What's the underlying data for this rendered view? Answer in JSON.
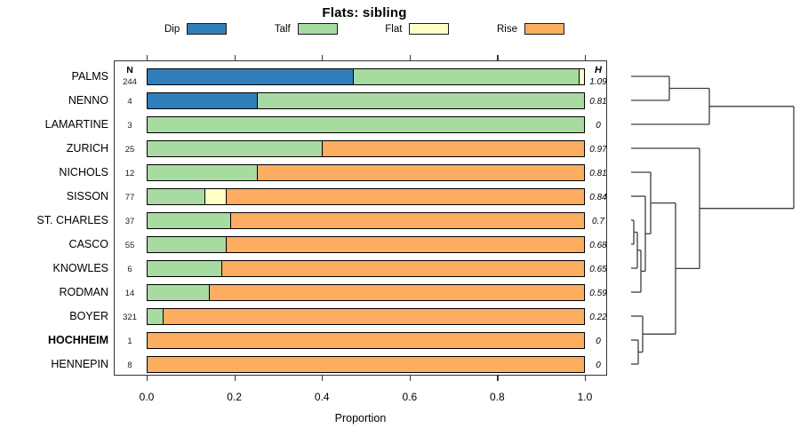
{
  "chart_data": {
    "type": "bar",
    "variant": "horizontal-stacked-proportion",
    "title": "Flats: sibling",
    "xlabel": "Proportion",
    "xlim": [
      0.0,
      1.0
    ],
    "xticks": [
      "0.0",
      "0.2",
      "0.4",
      "0.6",
      "0.8",
      "1.0"
    ],
    "grid": false,
    "legend_position": "top",
    "columns": {
      "n_header": "N",
      "h_header": "H"
    },
    "series_colors": {
      "Dip": "#2e7ebb",
      "Talf": "#a8dba2",
      "Flat": "#ffffc6",
      "Rise": "#fcad60"
    },
    "legend": [
      {
        "label": "Dip",
        "color": "#2e7ebb"
      },
      {
        "label": "Talf",
        "color": "#a8dba2"
      },
      {
        "label": "Flat",
        "color": "#ffffc6"
      },
      {
        "label": "Rise",
        "color": "#fcad60"
      }
    ],
    "rows": [
      {
        "label": "PALMS",
        "n": "244",
        "h": "1.09",
        "bold": false,
        "segments": [
          {
            "series": "Dip",
            "value": 0.47
          },
          {
            "series": "Talf",
            "value": 0.517
          },
          {
            "series": "Flat",
            "value": 0.013
          }
        ]
      },
      {
        "label": "NENNO",
        "n": "4",
        "h": "0.81",
        "bold": false,
        "segments": [
          {
            "series": "Dip",
            "value": 0.25
          },
          {
            "series": "Talf",
            "value": 0.75
          }
        ]
      },
      {
        "label": "LAMARTINE",
        "n": "3",
        "h": "0",
        "bold": false,
        "segments": [
          {
            "series": "Talf",
            "value": 1.0
          }
        ]
      },
      {
        "label": "ZURICH",
        "n": "25",
        "h": "0.97",
        "bold": false,
        "segments": [
          {
            "series": "Talf",
            "value": 0.4
          },
          {
            "series": "Rise",
            "value": 0.6
          }
        ]
      },
      {
        "label": "NICHOLS",
        "n": "12",
        "h": "0.81",
        "bold": false,
        "segments": [
          {
            "series": "Talf",
            "value": 0.25
          },
          {
            "series": "Rise",
            "value": 0.75
          }
        ]
      },
      {
        "label": "SISSON",
        "n": "77",
        "h": "0.84",
        "bold": false,
        "segments": [
          {
            "series": "Talf",
            "value": 0.13
          },
          {
            "series": "Flat",
            "value": 0.05
          },
          {
            "series": "Rise",
            "value": 0.82
          }
        ]
      },
      {
        "label": "ST. CHARLES",
        "n": "37",
        "h": "0.7",
        "bold": false,
        "segments": [
          {
            "series": "Talf",
            "value": 0.19
          },
          {
            "series": "Rise",
            "value": 0.81
          }
        ]
      },
      {
        "label": "CASCO",
        "n": "55",
        "h": "0.68",
        "bold": false,
        "segments": [
          {
            "series": "Talf",
            "value": 0.18
          },
          {
            "series": "Rise",
            "value": 0.82
          }
        ]
      },
      {
        "label": "KNOWLES",
        "n": "6",
        "h": "0.65",
        "bold": false,
        "segments": [
          {
            "series": "Talf",
            "value": 0.17
          },
          {
            "series": "Rise",
            "value": 0.83
          }
        ]
      },
      {
        "label": "RODMAN",
        "n": "14",
        "h": "0.59",
        "bold": false,
        "segments": [
          {
            "series": "Talf",
            "value": 0.14
          },
          {
            "series": "Rise",
            "value": 0.86
          }
        ]
      },
      {
        "label": "BOYER",
        "n": "321",
        "h": "0.22",
        "bold": false,
        "segments": [
          {
            "series": "Talf",
            "value": 0.035
          },
          {
            "series": "Rise",
            "value": 0.965
          }
        ]
      },
      {
        "label": "HOCHHEIM",
        "n": "1",
        "h": "0",
        "bold": true,
        "segments": [
          {
            "series": "Rise",
            "value": 1.0
          }
        ]
      },
      {
        "label": "HENNEPIN",
        "n": "8",
        "h": "0",
        "bold": false,
        "segments": [
          {
            "series": "Rise",
            "value": 1.0
          }
        ]
      }
    ],
    "dendrogram": {
      "line_color": "#3d3d3d",
      "segments": [
        [
          710,
          86,
          753,
          86
        ],
        [
          710,
          113,
          753,
          113
        ],
        [
          753,
          86,
          753,
          113
        ],
        [
          753,
          99.5,
          798,
          99.5
        ],
        [
          710,
          140,
          798,
          140
        ],
        [
          798,
          99.5,
          798,
          140
        ],
        [
          798,
          119.8,
          893,
          119.8
        ],
        [
          710,
          167,
          787,
          167
        ],
        [
          710,
          194,
          732,
          194
        ],
        [
          710,
          221,
          726,
          221
        ],
        [
          710,
          248,
          713,
          248
        ],
        [
          710,
          275,
          713,
          275
        ],
        [
          713,
          248,
          713,
          275
        ],
        [
          713,
          261.5,
          717,
          261.5
        ],
        [
          710,
          302,
          717,
          302
        ],
        [
          717,
          261.5,
          717,
          302
        ],
        [
          717,
          281.8,
          721,
          281.8
        ],
        [
          710,
          329,
          721,
          329
        ],
        [
          721,
          281.8,
          721,
          329
        ],
        [
          721,
          305.4,
          726,
          305.4
        ],
        [
          726,
          221,
          726,
          305.4
        ],
        [
          726,
          263.2,
          732,
          263.2
        ],
        [
          732,
          194,
          732,
          263.2
        ],
        [
          732,
          228.6,
          760,
          228.6
        ],
        [
          710,
          356,
          723,
          356
        ],
        [
          710,
          383,
          718,
          383
        ],
        [
          710,
          410,
          718,
          410
        ],
        [
          718,
          383,
          718,
          410
        ],
        [
          718,
          396.5,
          723,
          396.5
        ],
        [
          723,
          356,
          723,
          396.5
        ],
        [
          723,
          376.2,
          760,
          376.2
        ],
        [
          760,
          228.6,
          760,
          376.2
        ],
        [
          760,
          302.4,
          787,
          302.4
        ],
        [
          787,
          167,
          787,
          302.4
        ],
        [
          787,
          234.7,
          893,
          234.7
        ],
        [
          893,
          119.8,
          893,
          234.7
        ]
      ]
    }
  }
}
